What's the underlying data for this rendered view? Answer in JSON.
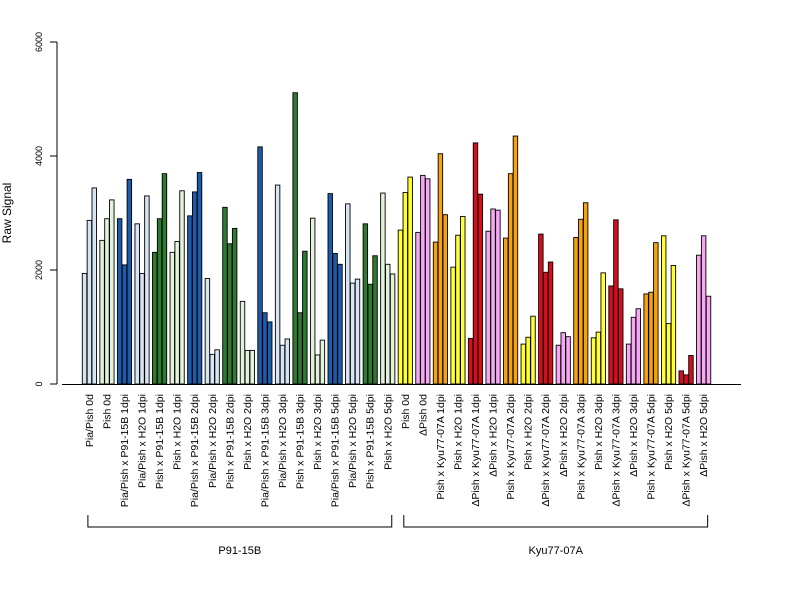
{
  "chart_data": {
    "type": "bar",
    "ylabel": "Raw Signal",
    "ylim": [
      0,
      6000
    ],
    "yticks": [
      0,
      2000,
      4000,
      6000
    ],
    "grid": false,
    "legend": "none",
    "colors": {
      "light_blue": "#d6e4f4",
      "dark_blue": "#1f5bab",
      "light_green": "#e3f2da",
      "dark_green": "#2d7a30",
      "yellow": "#ffff33",
      "pink": "#f7a8f4",
      "orange": "#f5a20f",
      "red": "#d40f1d"
    },
    "groups": [
      {
        "label": "Pia/Pish 0d",
        "color": "light_blue",
        "values": [
          1940,
          2870,
          3440
        ]
      },
      {
        "label": "Pish 0d",
        "color": "light_green",
        "values": [
          2520,
          2900,
          3230
        ]
      },
      {
        "label": "Pia/Pish x P91-15B 1dpi",
        "color": "dark_blue",
        "values": [
          2900,
          2090,
          3590
        ]
      },
      {
        "label": "Pia/Pish x H2O 1dpi",
        "color": "light_blue",
        "values": [
          2810,
          1940,
          3300
        ]
      },
      {
        "label": "Pish x P91-15B 1dpi",
        "color": "dark_green",
        "values": [
          2310,
          2900,
          3690
        ]
      },
      {
        "label": "Pish x H2O 1dpi",
        "color": "light_green",
        "values": [
          2310,
          2500,
          3390
        ]
      },
      {
        "label": "Pia/Pish x P91-15B 2dpi",
        "color": "dark_blue",
        "values": [
          2950,
          3370,
          3710
        ]
      },
      {
        "label": "Pia/Pish x H2O 2dpi",
        "color": "light_blue",
        "values": [
          1850,
          520,
          600
        ]
      },
      {
        "label": "Pish x P91-15B 2dpi",
        "color": "dark_green",
        "values": [
          3100,
          2460,
          2730
        ]
      },
      {
        "label": "Pish x H2O 2dpi",
        "color": "light_green",
        "values": [
          1450,
          590,
          590
        ]
      },
      {
        "label": "Pia/Pish x P91-15B 3dpi",
        "color": "dark_blue",
        "values": [
          4160,
          1250,
          1090
        ]
      },
      {
        "label": "Pia/Pish x H2O 3dpi",
        "color": "light_blue",
        "values": [
          3490,
          680,
          790
        ]
      },
      {
        "label": "Pish x P91-15B 3dpi",
        "color": "dark_green",
        "values": [
          5110,
          1250,
          2330
        ]
      },
      {
        "label": "Pish x H2O 3dpi",
        "color": "light_green",
        "values": [
          2910,
          510,
          770
        ]
      },
      {
        "label": "Pia/Pish x P91-15B 5dpi",
        "color": "dark_blue",
        "values": [
          3340,
          2290,
          2100
        ]
      },
      {
        "label": "Pia/Pish x H2O 5dpi",
        "color": "light_blue",
        "values": [
          3160,
          1770,
          1840
        ]
      },
      {
        "label": "Pish x P91-15B 5dpi",
        "color": "dark_green",
        "values": [
          2810,
          1750,
          2250
        ]
      },
      {
        "label": "Pish x H2O 5dpi",
        "color": "light_green",
        "values": [
          3350,
          2100,
          1930
        ]
      },
      {
        "label": "Pish 0d",
        "color": "yellow",
        "values": [
          2700,
          3360,
          3630
        ]
      },
      {
        "label": "ΔPish 0d",
        "color": "pink",
        "values": [
          2660,
          3660,
          3600
        ]
      },
      {
        "label": "Pish x Kyu77-07A 1dpi",
        "color": "orange",
        "values": [
          2490,
          4040,
          2970
        ]
      },
      {
        "label": "Pish x H2O 1dpi",
        "color": "yellow",
        "values": [
          2050,
          2610,
          2940
        ]
      },
      {
        "label": "ΔPish x Kyu77-07A 1dpi",
        "color": "red",
        "values": [
          800,
          4230,
          3330
        ]
      },
      {
        "label": "ΔPish x H2O 1dpi",
        "color": "pink",
        "values": [
          2680,
          3070,
          3050
        ]
      },
      {
        "label": "Pish x Kyu77-07A 2dpi",
        "color": "orange",
        "values": [
          2560,
          3690,
          4350
        ]
      },
      {
        "label": "Pish x H2O 2dpi",
        "color": "yellow",
        "values": [
          700,
          820,
          1190
        ]
      },
      {
        "label": "ΔPish x Kyu77-07A 2dpi",
        "color": "red",
        "values": [
          2630,
          1960,
          2140
        ]
      },
      {
        "label": "ΔPish x H2O 2dpi",
        "color": "pink",
        "values": [
          680,
          900,
          830
        ]
      },
      {
        "label": "Pish x Kyu77-07A 3dpi",
        "color": "orange",
        "values": [
          2570,
          2890,
          3180
        ]
      },
      {
        "label": "Pish x H2O 3dpi",
        "color": "yellow",
        "values": [
          810,
          910,
          1950
        ]
      },
      {
        "label": "ΔPish x Kyu77-07A 3dpi",
        "color": "red",
        "values": [
          1720,
          2880,
          1670
        ]
      },
      {
        "label": "ΔPish x H2O 3dpi",
        "color": "pink",
        "values": [
          700,
          1170,
          1320
        ]
      },
      {
        "label": "Pish x Kyu77-07A 5dpi",
        "color": "orange",
        "values": [
          1580,
          1610,
          2480
        ]
      },
      {
        "label": "Pish x H2O 5dpi",
        "color": "yellow",
        "values": [
          2600,
          1060,
          2080
        ]
      },
      {
        "label": "ΔPish x Kyu77-07A 5dpi",
        "color": "red",
        "values": [
          230,
          160,
          500
        ]
      },
      {
        "label": "ΔPish x H2O 5dpi",
        "color": "pink",
        "values": [
          2260,
          2600,
          1540
        ]
      }
    ],
    "brackets": [
      {
        "label": "P91-15B",
        "from": 0,
        "to": 17
      },
      {
        "label": "Kyu77-07A",
        "from": 18,
        "to": 35
      }
    ]
  }
}
